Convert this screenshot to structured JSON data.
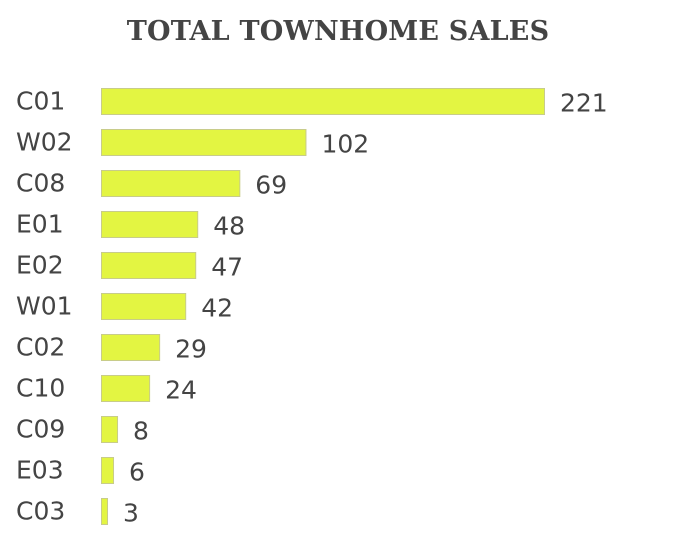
{
  "chart_data": {
    "type": "bar",
    "orientation": "horizontal",
    "title": "TOTAL TOWNHOME SALES",
    "categories": [
      "C01",
      "W02",
      "C08",
      "E01",
      "E02",
      "W01",
      "C02",
      "C10",
      "C09",
      "E03",
      "C03"
    ],
    "values": [
      221,
      102,
      69,
      48,
      47,
      42,
      29,
      24,
      8,
      6,
      3
    ],
    "xlabel": "",
    "ylabel": "",
    "xlim": [
      0,
      221
    ],
    "grid": false,
    "legend": "none",
    "bar_color": "#e3f542"
  }
}
